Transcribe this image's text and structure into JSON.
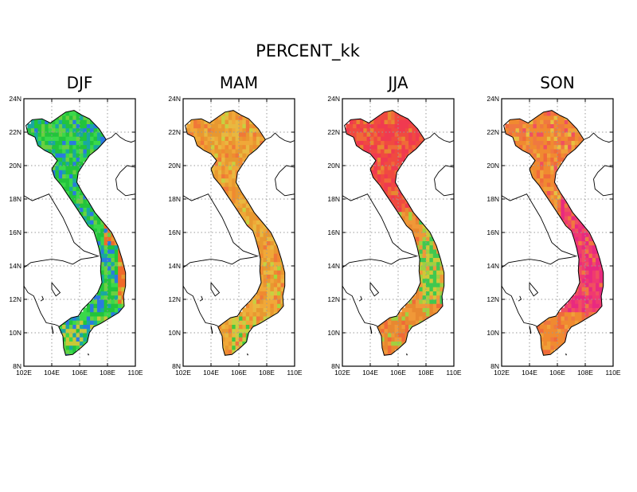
{
  "title": "PERCENT_kk",
  "lat_ticks": [
    "24N",
    "22N",
    "20N",
    "18N",
    "16N",
    "14N",
    "12N",
    "10N",
    "8N"
  ],
  "lon_ticks": [
    "102E",
    "104E",
    "106E",
    "108E",
    "110E"
  ],
  "lat_range": [
    8,
    24
  ],
  "lon_range": [
    102,
    110
  ],
  "grid": "dotted",
  "panels": [
    {
      "season": "DJF",
      "scheme": "cool-green",
      "palette": [
        "#22c43c",
        "#3ad84a",
        "#19a8a0",
        "#2a7ae0",
        "#6ad040",
        "#c8c838",
        "#e89830",
        "#f06a2a"
      ]
    },
    {
      "season": "MAM",
      "scheme": "warm-orange",
      "palette": [
        "#e89830",
        "#f0a838",
        "#e8b840",
        "#f08a30",
        "#c8d040",
        "#f07838",
        "#a8d838",
        "#40c840"
      ]
    },
    {
      "season": "JJA",
      "scheme": "hot-red",
      "palette": [
        "#f04a40",
        "#f03a50",
        "#f06a38",
        "#e88830",
        "#f09838",
        "#d0c838",
        "#a0d040",
        "#40c850"
      ]
    },
    {
      "season": "SON",
      "scheme": "magenta-orange",
      "palette": [
        "#f08a30",
        "#f07840",
        "#f05060",
        "#f03a70",
        "#e82a80",
        "#f0a038",
        "#e8c040",
        "#f06a3a"
      ]
    }
  ]
}
